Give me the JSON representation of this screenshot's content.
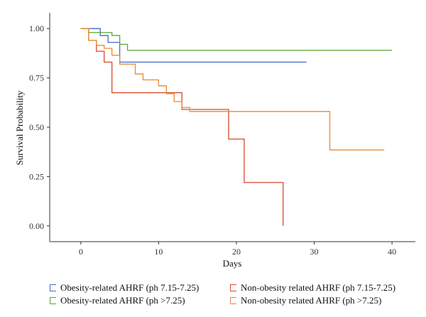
{
  "chart_data": {
    "type": "line",
    "step": "post",
    "xlabel": "Days",
    "ylabel": "Survival Probability",
    "xlim": [
      -4,
      43
    ],
    "ylim": [
      -0.08,
      1.08
    ],
    "xticks": [
      "0",
      "10",
      "20",
      "30",
      "40"
    ],
    "yticks": [
      "0.00",
      "0.25",
      "0.50",
      "0.75",
      "1.00"
    ],
    "grid": false,
    "legend_position": "bottom",
    "series": [
      {
        "name": "Obesity-related AHRF (ph 7.15-7.25)",
        "color": "#4a67c4",
        "x": [
          0,
          2.5,
          3.5,
          5,
          29
        ],
        "y": [
          1.0,
          0.965,
          0.93,
          0.83,
          0.83
        ]
      },
      {
        "name": "Obesity-related AHRF (ph >7.25)",
        "color": "#5aa832",
        "x": [
          0,
          1,
          4,
          5,
          6,
          40
        ],
        "y": [
          1.0,
          0.98,
          0.965,
          0.92,
          0.89,
          0.89
        ]
      },
      {
        "name": "Non-obesity related AHRF (ph 7.15-7.25)",
        "color": "#d44a2e",
        "x": [
          0,
          1,
          2,
          3,
          4,
          13,
          19,
          21,
          26
        ],
        "y": [
          1.0,
          0.94,
          0.885,
          0.83,
          0.675,
          0.59,
          0.44,
          0.22,
          0.0
        ]
      },
      {
        "name": "Non-obesity related AHRF (ph >7.25)",
        "color": "#ea8a30",
        "x": [
          0,
          1,
          2,
          3,
          4,
          5,
          7,
          8,
          10,
          11,
          12,
          13,
          14,
          32,
          39
        ],
        "y": [
          1.0,
          0.94,
          0.915,
          0.9,
          0.865,
          0.82,
          0.77,
          0.74,
          0.71,
          0.67,
          0.63,
          0.6,
          0.58,
          0.385,
          0.385
        ]
      }
    ]
  }
}
